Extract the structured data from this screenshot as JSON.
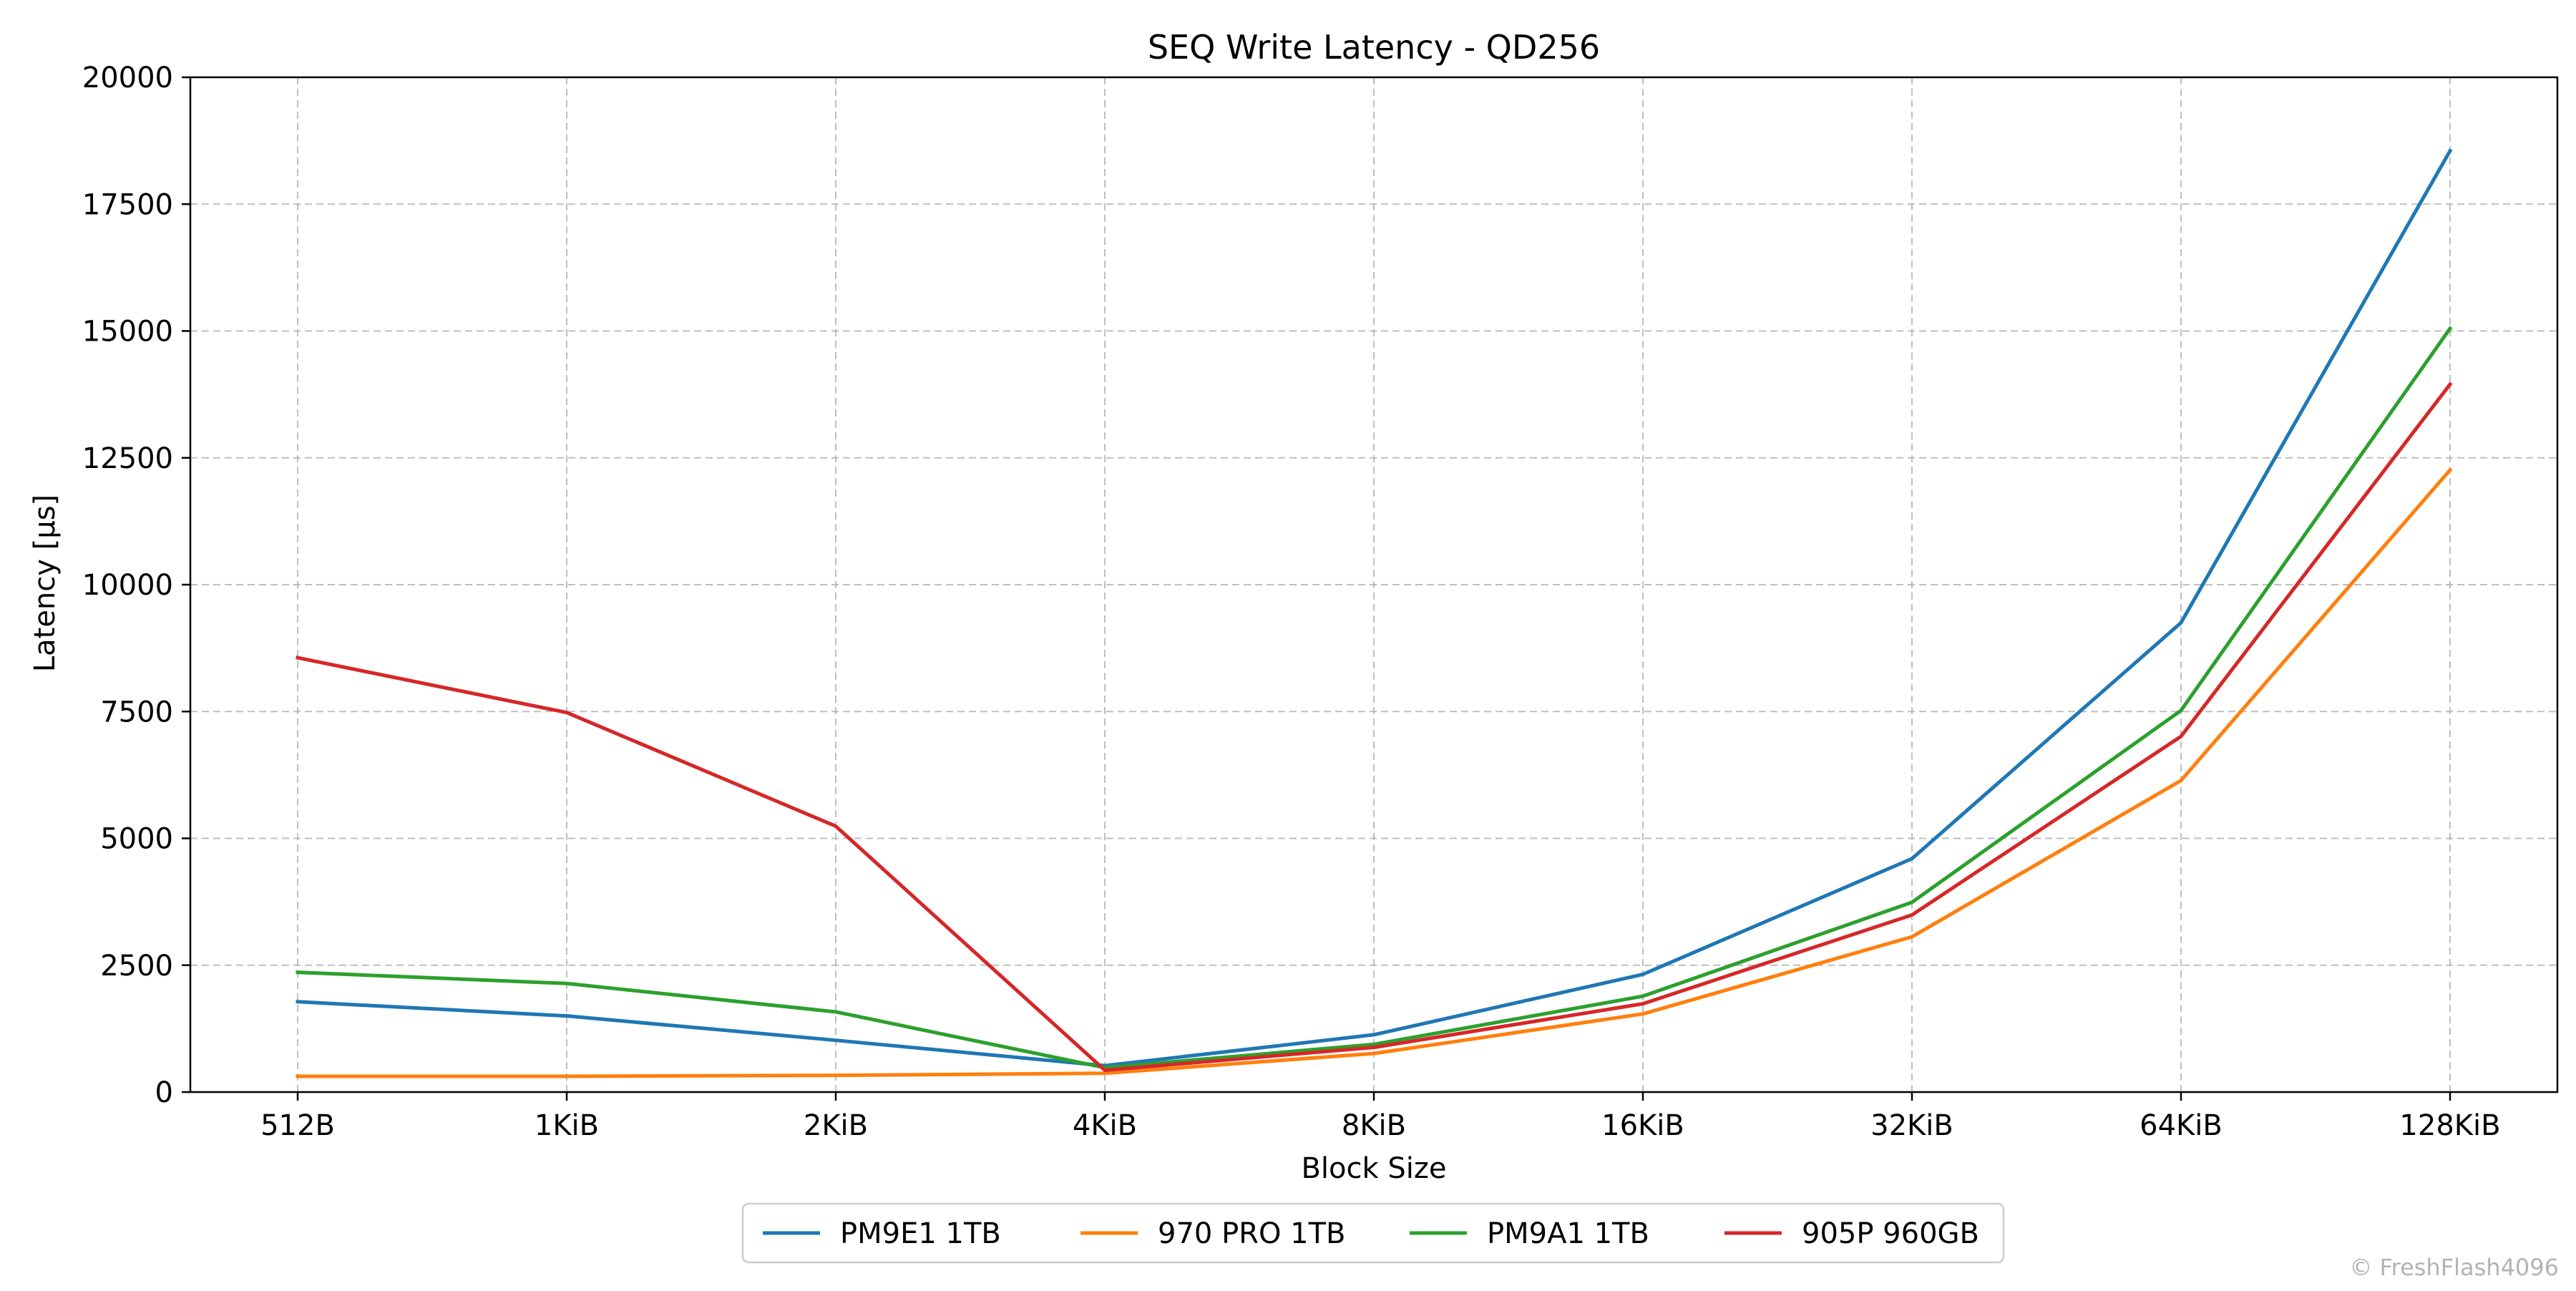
{
  "chart_data": {
    "type": "line",
    "title": "SEQ Write Latency - QD256",
    "xlabel": "Block Size",
    "ylabel": "Latency [µs]",
    "categories": [
      "512B",
      "1KiB",
      "2KiB",
      "4KiB",
      "8KiB",
      "16KiB",
      "32KiB",
      "64KiB",
      "128KiB"
    ],
    "ylim": [
      0,
      20000
    ],
    "yticks": [
      0,
      2500,
      5000,
      7500,
      10000,
      12500,
      15000,
      17500,
      20000
    ],
    "grid": true,
    "legend_position": "bottom-center",
    "series": [
      {
        "name": "PM9E1 1TB",
        "color": "#1f77b4",
        "values": [
          1780,
          1500,
          1020,
          520,
          1130,
          2320,
          4600,
          9250,
          18550
        ]
      },
      {
        "name": "970 PRO 1TB",
        "color": "#ff7f0e",
        "values": [
          310,
          310,
          330,
          370,
          760,
          1540,
          3060,
          6140,
          12260
        ]
      },
      {
        "name": "PM9A1 1TB",
        "color": "#2ca02c",
        "values": [
          2360,
          2140,
          1580,
          480,
          940,
          1890,
          3740,
          7520,
          15050
        ]
      },
      {
        "name": "905P 960GB",
        "color": "#d62728",
        "values": [
          8560,
          7480,
          5240,
          430,
          880,
          1740,
          3490,
          7010,
          13950
        ]
      }
    ]
  },
  "watermark": "© FreshFlash4096"
}
